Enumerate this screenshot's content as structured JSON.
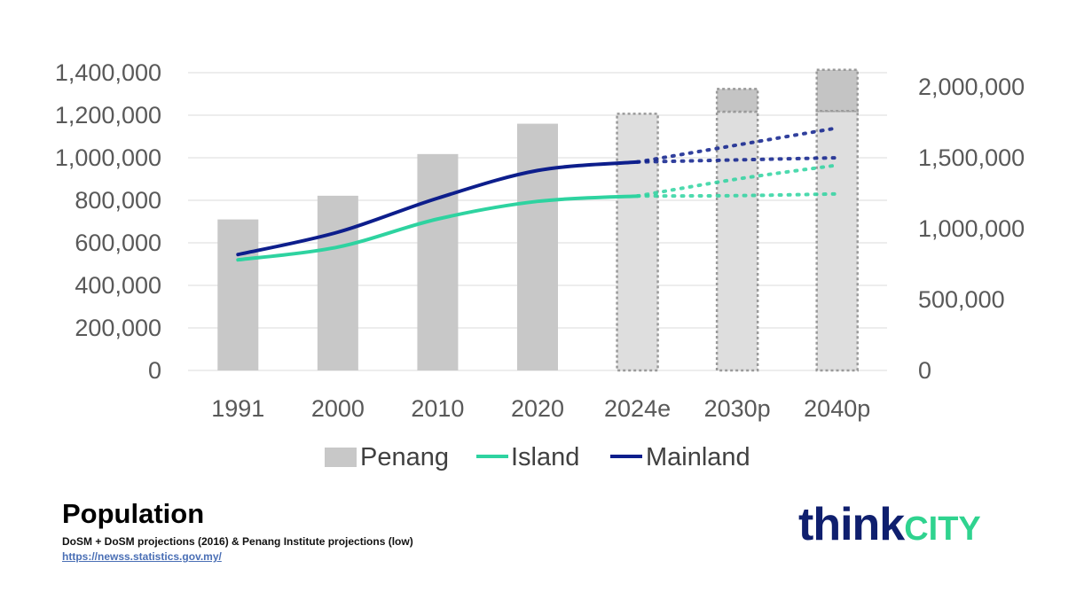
{
  "chart_data": {
    "type": "bar",
    "categories": [
      "1991",
      "2000",
      "2010",
      "2020",
      "2024e",
      "2030p",
      "2040p"
    ],
    "projected_categories": [
      "2024e",
      "2030p",
      "2040p"
    ],
    "series": [
      {
        "name": "Penang",
        "kind": "bar",
        "axis": "right",
        "values": [
          1065000,
          1232000,
          1526000,
          1740000,
          1810000,
          1985000,
          2120000
        ],
        "projection_lower": [
          null,
          null,
          null,
          null,
          null,
          1825000,
          1830000
        ],
        "color": "#c8c8c8"
      },
      {
        "name": "Island",
        "kind": "line",
        "axis": "left",
        "values": [
          520000,
          580000,
          712000,
          795000,
          820000,
          null,
          null
        ],
        "projection_high": [
          null,
          null,
          null,
          null,
          820000,
          900000,
          965000
        ],
        "projection_low": [
          null,
          null,
          null,
          null,
          820000,
          822000,
          830000
        ],
        "color": "#2ed3a0"
      },
      {
        "name": "Mainland",
        "kind": "line",
        "axis": "left",
        "values": [
          545000,
          650000,
          810000,
          940000,
          980000,
          null,
          null
        ],
        "projection_high": [
          null,
          null,
          null,
          null,
          980000,
          1060000,
          1140000
        ],
        "projection_low": [
          null,
          null,
          null,
          null,
          980000,
          990000,
          1000000
        ],
        "color": "#0d1e8c"
      }
    ],
    "left_axis": {
      "ylim": [
        0,
        1400000
      ],
      "ticks": [
        "0",
        "200,000",
        "400,000",
        "600,000",
        "800,000",
        "1,000,000",
        "1,200,000",
        "1,400,000"
      ]
    },
    "right_axis": {
      "ylim": [
        0,
        2100000
      ],
      "ticks": [
        "0",
        "500,000",
        "1,000,000",
        "1,500,000",
        "2,000,000"
      ]
    },
    "grid": true,
    "legend_position": "bottom"
  },
  "footer": {
    "title": "Population",
    "source": "DoSM + DoSM projections (2016) & Penang Institute projections (low)",
    "link": "https://newss.statistics.gov.my/"
  },
  "logo": {
    "think": "think",
    "city": "CITY"
  }
}
